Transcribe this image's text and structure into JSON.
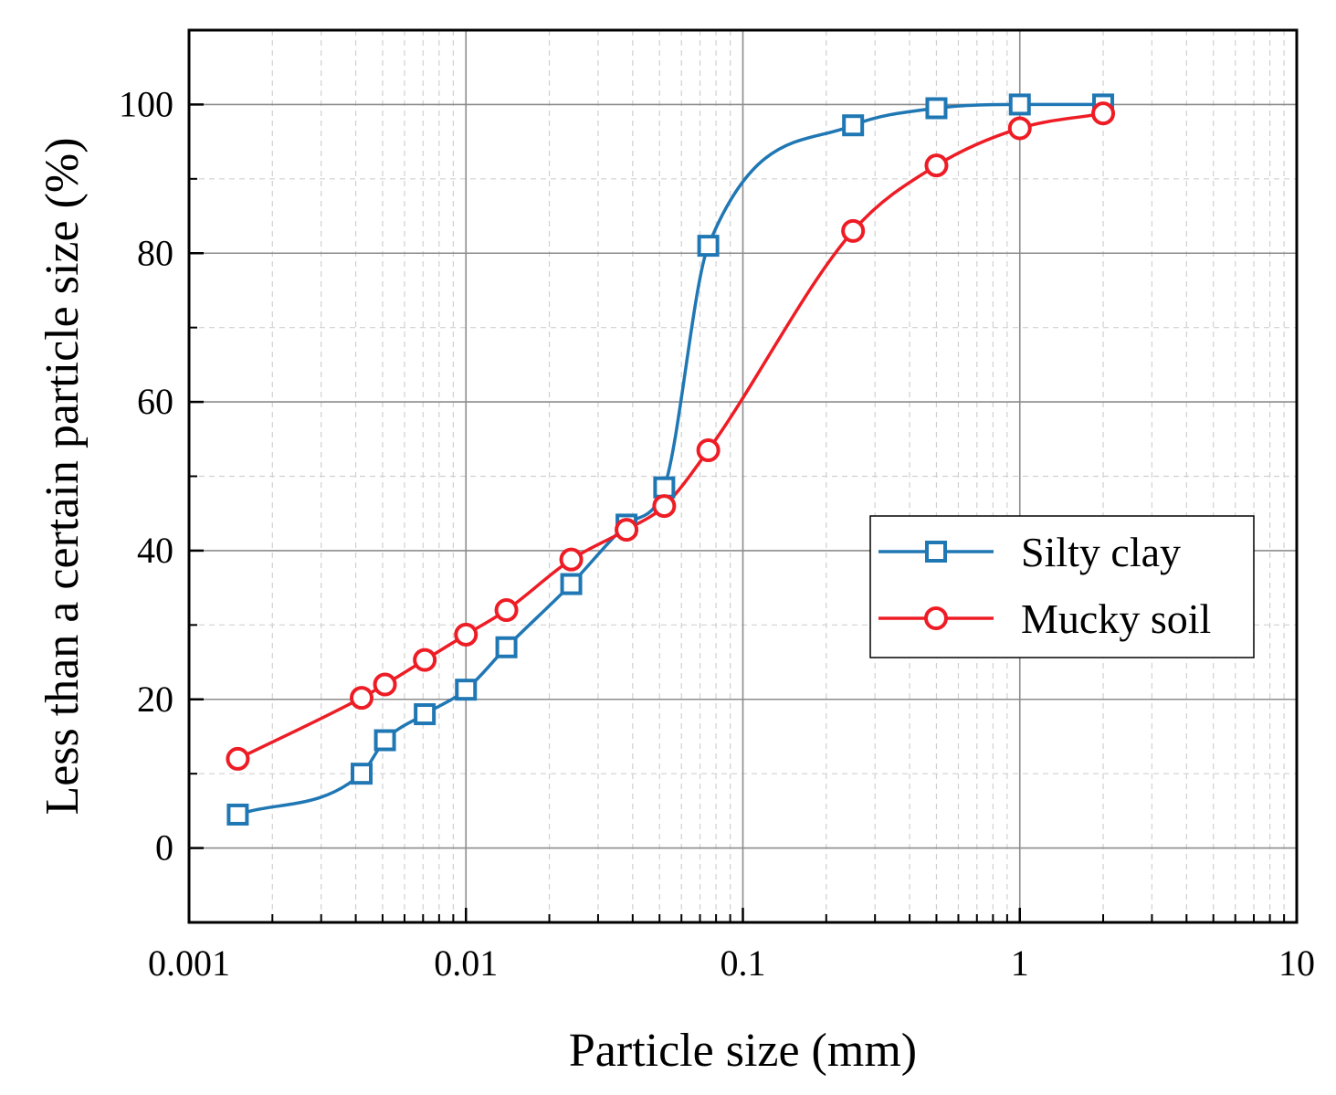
{
  "chart_data": {
    "type": "line",
    "xlabel": "Particle size (mm)",
    "ylabel": "Less than a certain particle size (%)",
    "x_scale": "log",
    "xlim": [
      0.001,
      10
    ],
    "ylim": [
      -10,
      110
    ],
    "x_ticks": [
      0.001,
      0.01,
      0.1,
      1,
      10
    ],
    "x_tick_labels": [
      "0.001",
      "0.01",
      "0.1",
      "1",
      "10"
    ],
    "y_ticks": [
      0,
      20,
      40,
      60,
      80,
      100
    ],
    "y_tick_labels": [
      "0",
      "20",
      "40",
      "60",
      "80",
      "100"
    ],
    "grid": true,
    "legend_position": "center-right",
    "series": [
      {
        "name": "Silty clay",
        "color": "#1f77b4",
        "marker": "square",
        "x": [
          0.0015,
          0.0042,
          0.0051,
          0.0071,
          0.01,
          0.014,
          0.024,
          0.038,
          0.052,
          0.075,
          0.25,
          0.5,
          1,
          2
        ],
        "y": [
          4.5,
          10,
          14.5,
          18,
          21.3,
          27,
          35.5,
          43.5,
          48.5,
          81,
          97.2,
          99.5,
          100,
          100
        ]
      },
      {
        "name": "Mucky soil",
        "color": "#ee1c25",
        "marker": "circle",
        "x": [
          0.0015,
          0.0042,
          0.0051,
          0.0071,
          0.01,
          0.014,
          0.024,
          0.038,
          0.052,
          0.075,
          0.25,
          0.5,
          1,
          2
        ],
        "y": [
          12,
          20.2,
          22,
          25.3,
          28.7,
          32,
          38.8,
          42.8,
          46,
          53.5,
          83,
          91.8,
          96.8,
          98.8
        ]
      }
    ]
  }
}
